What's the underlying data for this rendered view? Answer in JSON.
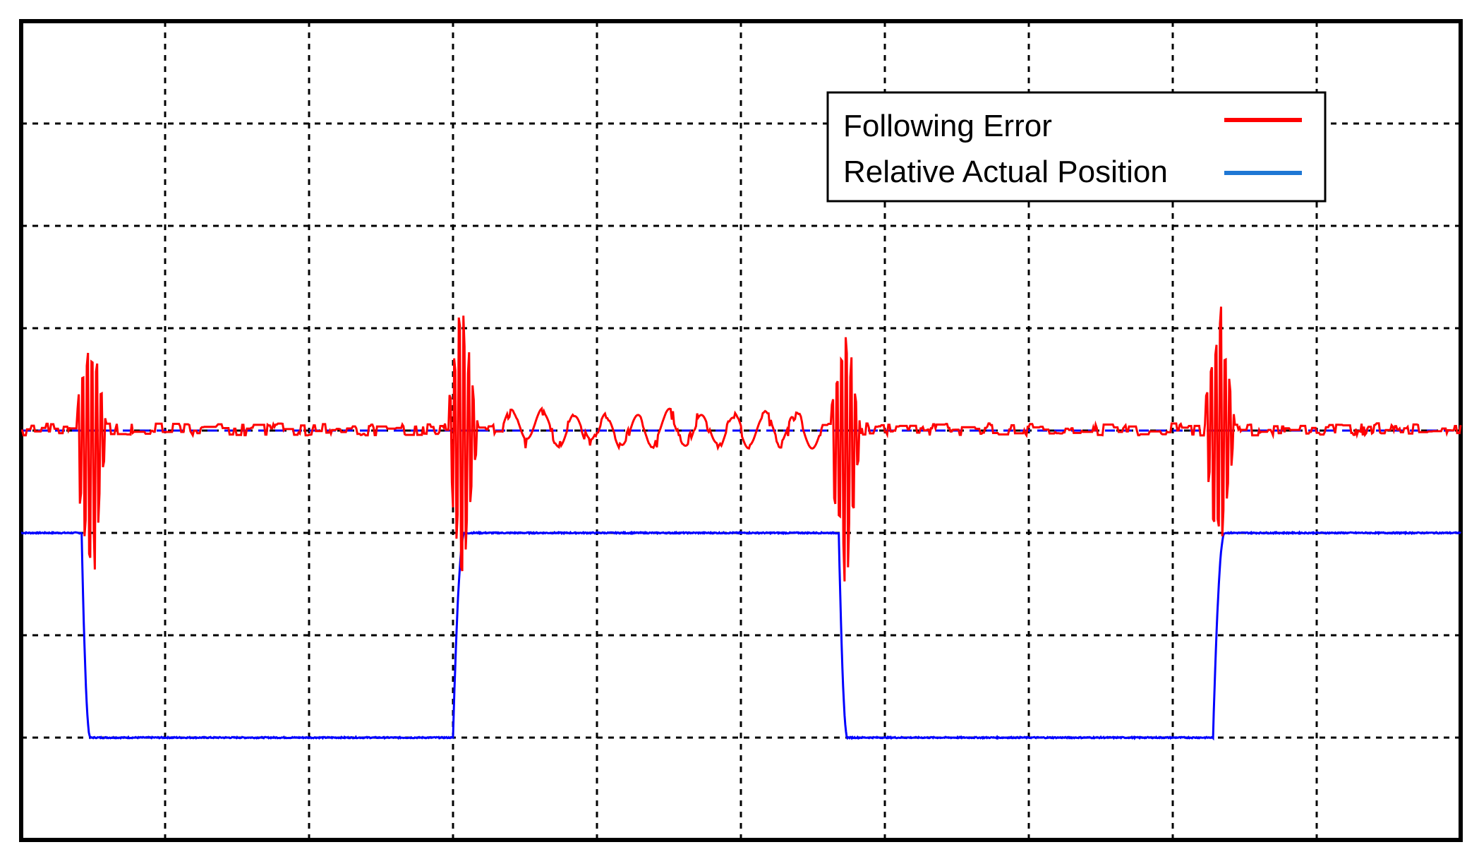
{
  "chart_data": {
    "type": "line",
    "title": "",
    "xlabel": "",
    "ylabel": "",
    "x_divisions": 10,
    "y_divisions": 8,
    "xlim": [
      0,
      10
    ],
    "ylim": [
      0,
      8
    ],
    "grid": true,
    "grid_style": "dashed",
    "legend_position": "top-right",
    "series": [
      {
        "name": "Following Error",
        "color": "#ff0000",
        "baseline": 4.0,
        "ripple": 0.06,
        "spikes": [
          {
            "x": 0.45,
            "high": 5.1,
            "low": 2.1
          },
          {
            "x": 3.03,
            "high": 5.4,
            "low": 2.4
          },
          {
            "x": 5.69,
            "high": 5.2,
            "low": 2.15
          },
          {
            "x": 8.29,
            "high": 5.4,
            "low": 2.7
          }
        ],
        "oscillation": {
          "from": 3.35,
          "to": 5.55,
          "amplitude": 0.15,
          "period": 0.22
        }
      },
      {
        "name": "Relative Actual Position",
        "color": "#0000ff",
        "high": 3.0,
        "low": 1.0,
        "transitions": [
          {
            "x": 0.42,
            "to": "low",
            "duration": 0.06
          },
          {
            "x": 3.0,
            "to": "high",
            "duration": 0.08
          },
          {
            "x": 5.68,
            "to": "low",
            "duration": 0.06
          },
          {
            "x": 8.28,
            "to": "high",
            "duration": 0.08
          }
        ]
      }
    ],
    "legend": [
      {
        "label": "Following Error",
        "color": "#ff0000"
      },
      {
        "label": "Relative Actual Position",
        "color": "#1f77d4"
      }
    ]
  }
}
